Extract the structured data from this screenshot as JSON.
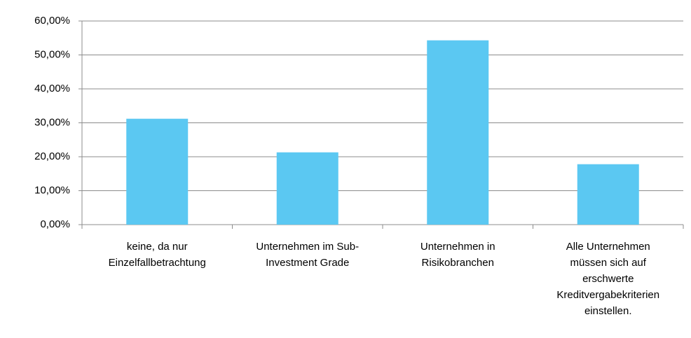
{
  "chart_data": {
    "type": "bar",
    "categories": [
      "keine, da nur Einzelfallbetrachtung",
      "Unternehmen im Sub-Investment Grade",
      "Unternehmen in Risikobranchen",
      "Alle Unternehmen müssen sich auf erschwerte Kreditvergabekriterien einstellen."
    ],
    "values": [
      31.2,
      21.3,
      54.3,
      17.8
    ],
    "color": "#5bc8f2",
    "ylim": [
      0,
      60
    ],
    "yticks": [
      {
        "value": 0,
        "label": "0,00%"
      },
      {
        "value": 10,
        "label": "10,00%"
      },
      {
        "value": 20,
        "label": "20,00%"
      },
      {
        "value": 30,
        "label": "30,00%"
      },
      {
        "value": 40,
        "label": "40,00%"
      },
      {
        "value": 50,
        "label": "50,00%"
      },
      {
        "value": 60,
        "label": "60,00%"
      }
    ],
    "grid": true
  }
}
